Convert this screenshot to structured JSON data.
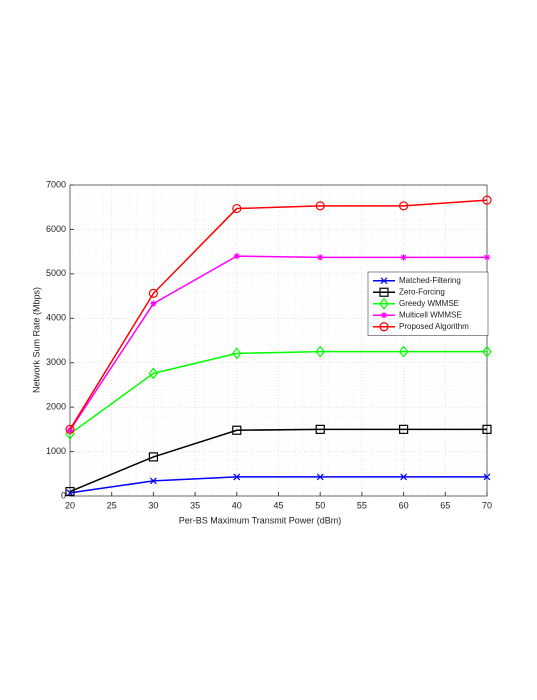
{
  "chart_data": {
    "type": "line",
    "x_label": "Per-BS Maximum Transmit Power (dBm)",
    "y_label": "Network Sum Rate (Mbps)",
    "x": [
      20,
      30,
      40,
      50,
      60,
      70
    ],
    "series": [
      {
        "name": "Matched-Filtering",
        "color": "#0000ff",
        "marker": "x",
        "values": [
          70,
          340,
          430,
          430,
          430,
          430
        ]
      },
      {
        "name": "Zero-Forcing",
        "color": "#000000",
        "marker": "square",
        "values": [
          100,
          880,
          1480,
          1500,
          1500,
          1500
        ]
      },
      {
        "name": "Greedy WMMSE",
        "color": "#00ff00",
        "marker": "diamond",
        "values": [
          1400,
          2760,
          3210,
          3250,
          3250,
          3250
        ]
      },
      {
        "name": "Multicell WMMSE",
        "color": "#ff00ff",
        "marker": "asterisk",
        "values": [
          1480,
          4330,
          5400,
          5370,
          5370,
          5370
        ]
      },
      {
        "name": "Proposed Algorithm",
        "color": "#ff0000",
        "marker": "circle",
        "values": [
          1500,
          4560,
          6470,
          6530,
          6530,
          6660
        ]
      }
    ],
    "xlim": [
      20,
      70
    ],
    "xticks": [
      20,
      25,
      30,
      35,
      40,
      45,
      50,
      55,
      60,
      65,
      70
    ],
    "ylim": [
      0,
      7000
    ],
    "yticks": [
      0,
      1000,
      2000,
      3000,
      4000,
      5000,
      6000,
      7000
    ],
    "grid": true,
    "minor_grid": true,
    "legend": "right"
  }
}
